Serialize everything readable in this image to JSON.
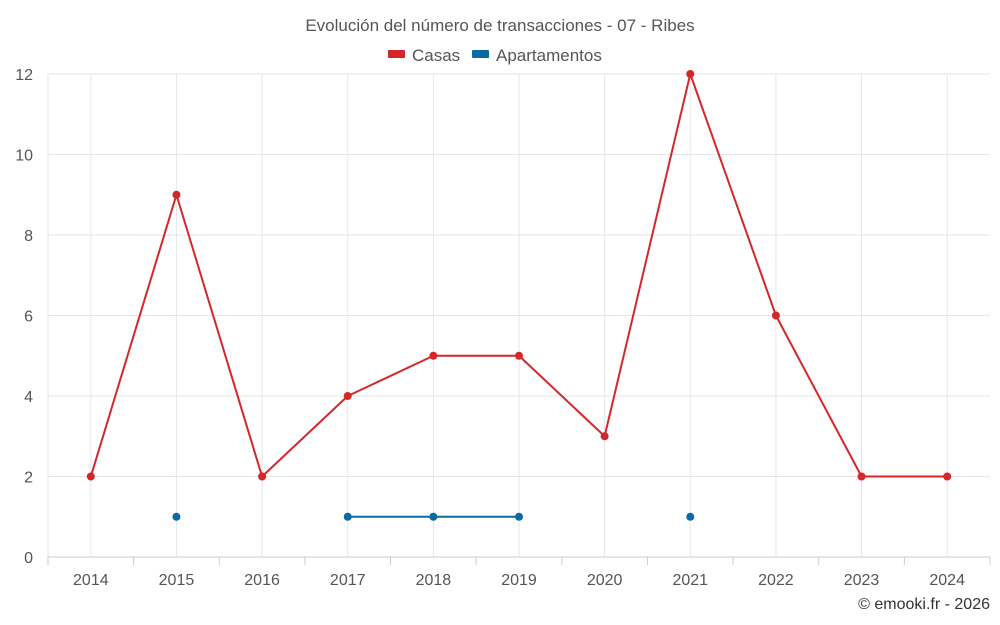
{
  "chart_data": {
    "type": "line",
    "title": "Evolución del número de transacciones - 07 - Ribes",
    "xlabel": "",
    "ylabel": "",
    "categories": [
      "2014",
      "2015",
      "2016",
      "2017",
      "2018",
      "2019",
      "2020",
      "2021",
      "2022",
      "2023",
      "2024"
    ],
    "ylim": [
      0,
      12
    ],
    "yticks": [
      0,
      2,
      4,
      6,
      8,
      10,
      12
    ],
    "grid": true,
    "legend_position": "top-center",
    "series": [
      {
        "name": "Casas",
        "color": "#d62728",
        "values": [
          2,
          9,
          2,
          4,
          5,
          5,
          3,
          12,
          6,
          2,
          2
        ]
      },
      {
        "name": "Apartamentos",
        "color": "#0b6aa2",
        "values": [
          null,
          1,
          null,
          1,
          1,
          1,
          null,
          1,
          null,
          null,
          null
        ]
      }
    ]
  },
  "credit": "© emooki.fr - 2026"
}
